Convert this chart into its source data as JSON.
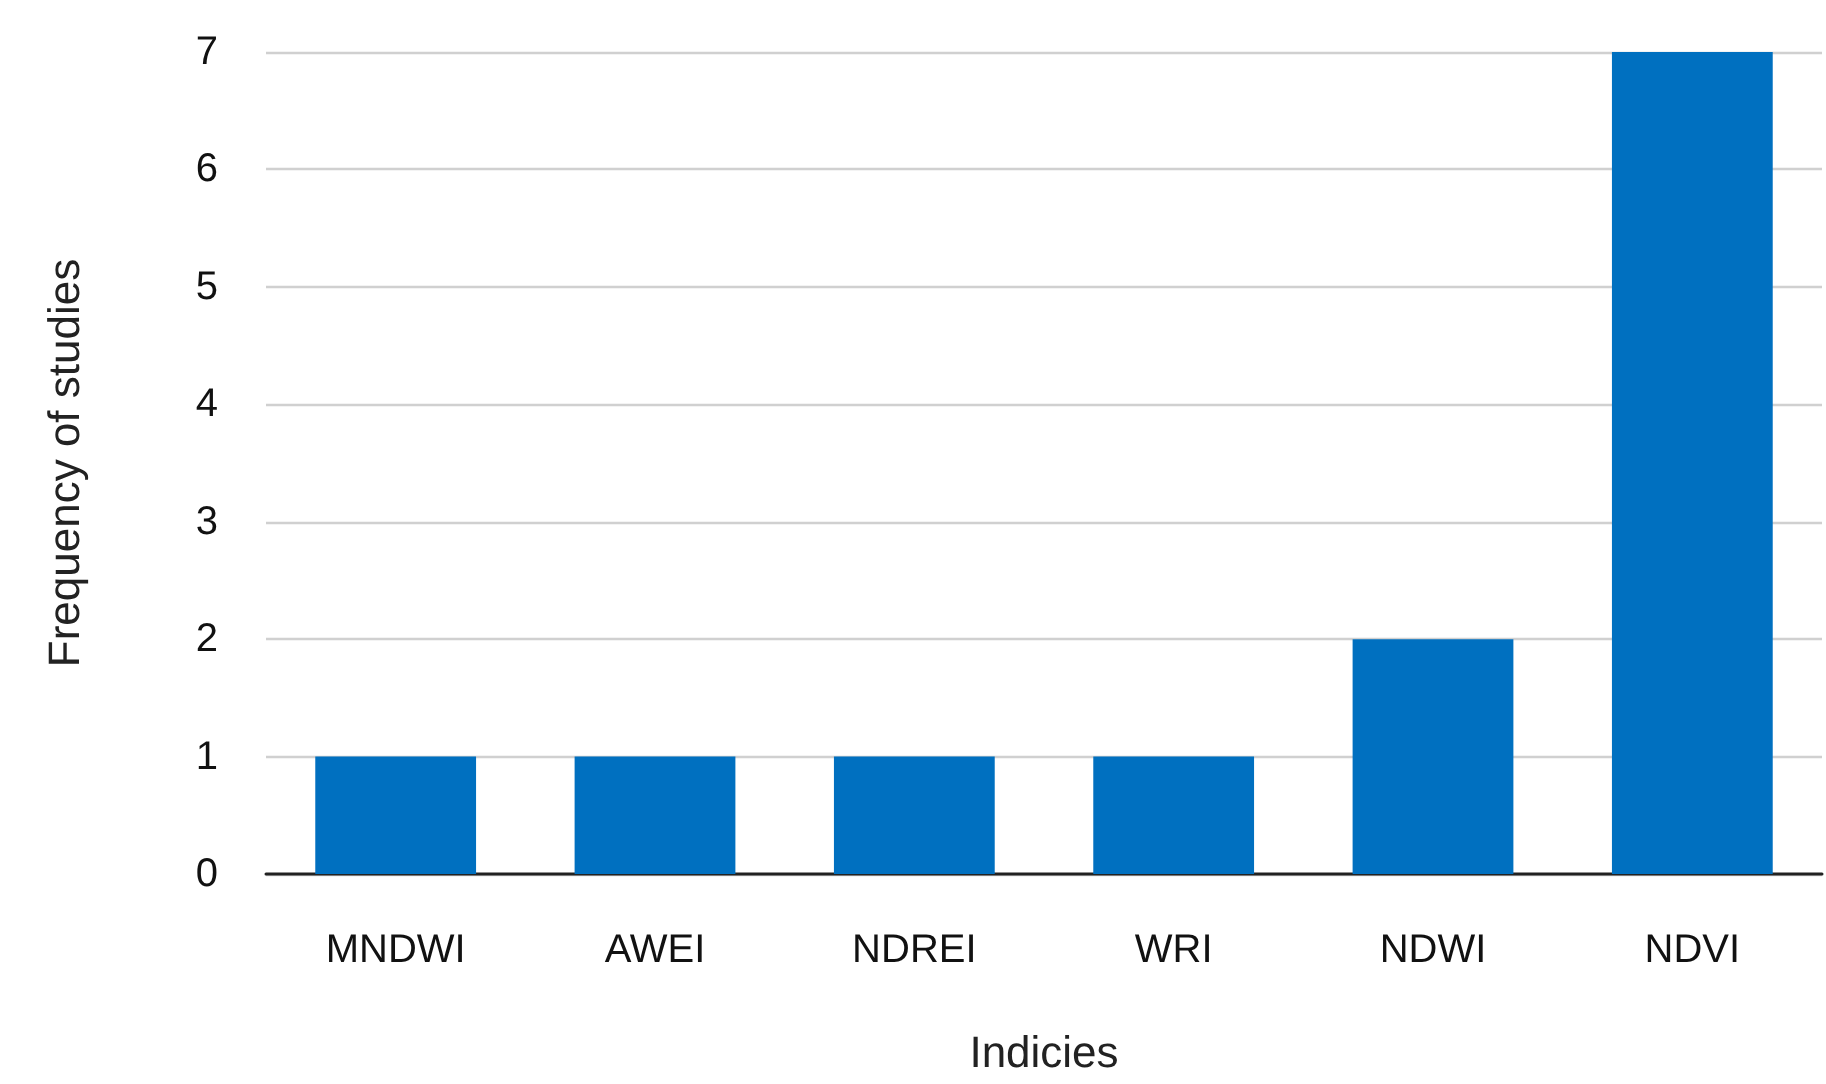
{
  "chart_data": {
    "type": "bar",
    "xlabel": "Indicies",
    "ylabel": "Frequency of studies",
    "categories": [
      "MNDWI",
      "AWEI",
      "NDREI",
      "WRI",
      "NDWI",
      "NDVI"
    ],
    "values": [
      1,
      1,
      1,
      1,
      2,
      7
    ],
    "color": "#0070c0",
    "ylim": [
      0,
      7
    ],
    "yticks": [
      0,
      1,
      2,
      3,
      4,
      5,
      6,
      7
    ],
    "grid": "y"
  }
}
